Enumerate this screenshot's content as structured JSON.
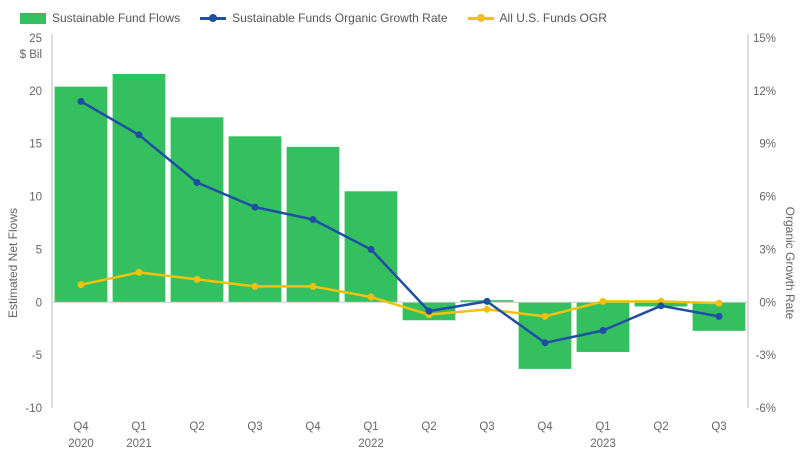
{
  "chart_data": {
    "type": "bar+line",
    "legend": {
      "bar_label": "Sustainable Fund Flows",
      "line1_label": "Sustainable Funds Organic Growth Rate",
      "line2_label": "All U.S. Funds OGR"
    },
    "categories": [
      {
        "q": "Q4",
        "year": "2020"
      },
      {
        "q": "Q1",
        "year": "2021"
      },
      {
        "q": "Q2",
        "year": ""
      },
      {
        "q": "Q3",
        "year": ""
      },
      {
        "q": "Q4",
        "year": ""
      },
      {
        "q": "Q1",
        "year": "2022"
      },
      {
        "q": "Q2",
        "year": ""
      },
      {
        "q": "Q3",
        "year": ""
      },
      {
        "q": "Q4",
        "year": ""
      },
      {
        "q": "Q1",
        "year": "2023"
      },
      {
        "q": "Q2",
        "year": ""
      },
      {
        "q": "Q3",
        "year": ""
      }
    ],
    "flows": [
      20.4,
      21.6,
      17.5,
      15.7,
      14.7,
      10.5,
      -1.7,
      0.2,
      -6.3,
      -4.7,
      -0.4,
      -2.7
    ],
    "sustainable_ogr": [
      11.4,
      9.5,
      6.8,
      5.4,
      4.7,
      3.0,
      -0.5,
      0.05,
      -2.3,
      -1.6,
      -0.2,
      -0.8
    ],
    "all_funds_ogr": [
      1.0,
      1.7,
      1.3,
      0.9,
      0.9,
      0.3,
      -0.7,
      -0.4,
      -0.8,
      0.05,
      0.05,
      -0.05
    ],
    "y_left": {
      "label": "Estimated Net Flows",
      "unit": "$ Bil",
      "min": -10,
      "max": 25,
      "ticks": [
        "25",
        "20",
        "15",
        "10",
        "5",
        "0",
        "-5",
        "-10"
      ]
    },
    "y_right": {
      "label": "Organic Growth Rate",
      "min": -6,
      "max": 15,
      "ticks": [
        "15%",
        "12%",
        "9%",
        "6%",
        "3%",
        "0%",
        "-3%",
        "-6%"
      ]
    },
    "colors": {
      "bar": "#35c060",
      "line1": "#1f4ea3",
      "line2": "#f2c10c",
      "axis": "#bbbbbb",
      "zero": "#cccccc"
    }
  }
}
